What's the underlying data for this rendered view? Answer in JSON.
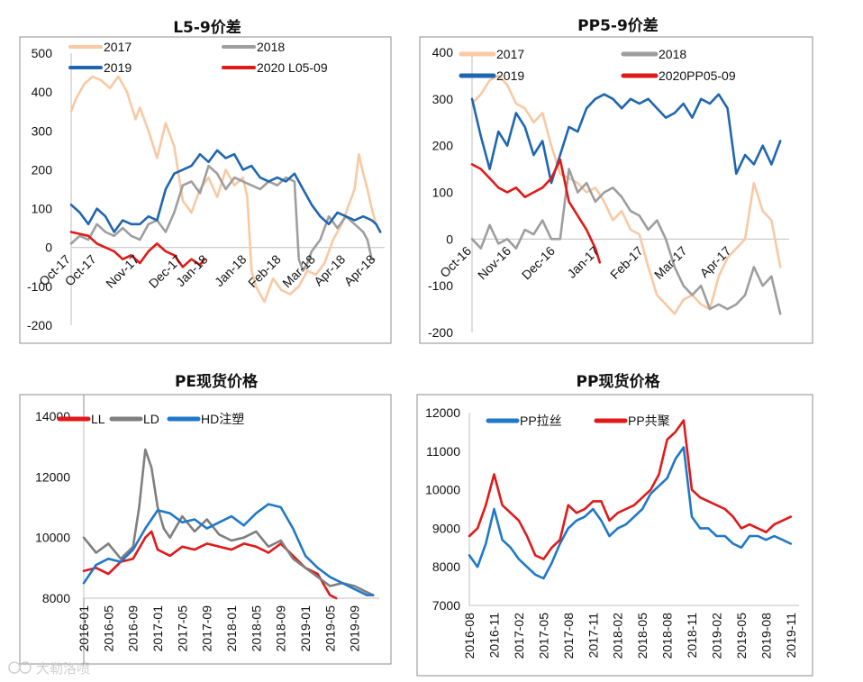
{
  "watermark": "大勒洛喷",
  "chart_data": [
    {
      "type": "line",
      "title": "L5-9价差",
      "ylim": [
        -200,
        500
      ],
      "yticks": [
        -200,
        -100,
        0,
        100,
        200,
        300,
        400,
        500
      ],
      "x_range": [
        0,
        7.3
      ],
      "categories": [
        "Oct-17",
        "Oct-17",
        "Nov-17",
        "Dec-17",
        "Jan-18",
        "Jan-18",
        "Feb-18",
        "Mar-18",
        "Apr-18",
        "Apr-18"
      ],
      "cat_pos": [
        0,
        0.6,
        1.6,
        2.6,
        3.2,
        4.1,
        4.9,
        5.7,
        6.4,
        7.1
      ],
      "xtick_rotate": -45,
      "series": [
        {
          "name": "2017",
          "color": "#F8C9A3",
          "x": [
            0,
            0.1,
            0.3,
            0.5,
            0.7,
            0.9,
            1.1,
            1.3,
            1.5,
            1.6,
            1.8,
            2.0,
            2.2,
            2.4,
            2.6,
            2.8,
            3.0,
            3.2,
            3.4,
            3.6,
            3.8,
            4.0,
            4.1,
            4.2,
            4.3,
            4.5,
            4.7,
            4.9,
            5.1,
            5.3,
            5.5,
            5.7,
            5.9,
            6.1,
            6.3,
            6.5,
            6.6,
            6.7,
            6.8,
            6.9,
            7.0,
            7.1
          ],
          "values": [
            350,
            380,
            420,
            440,
            430,
            410,
            440,
            400,
            330,
            360,
            300,
            230,
            320,
            260,
            120,
            90,
            150,
            180,
            130,
            200,
            160,
            180,
            130,
            -60,
            -100,
            -140,
            -80,
            -110,
            -120,
            -100,
            -60,
            -70,
            -40,
            20,
            60,
            120,
            150,
            240,
            190,
            150,
            100,
            60
          ]
        },
        {
          "name": "2018",
          "color": "#9E9E9E",
          "x": [
            0,
            0.2,
            0.4,
            0.6,
            0.8,
            1.0,
            1.2,
            1.4,
            1.6,
            1.8,
            2.0,
            2.2,
            2.4,
            2.6,
            2.8,
            3.0,
            3.2,
            3.4,
            3.6,
            3.8,
            4.0,
            4.2,
            4.4,
            4.6,
            4.8,
            5.0,
            5.2,
            5.3,
            5.4,
            5.5,
            5.6,
            5.8,
            6.0,
            6.2,
            6.4,
            6.6,
            6.8,
            6.9,
            7.0,
            7.05
          ],
          "values": [
            10,
            30,
            20,
            60,
            40,
            30,
            50,
            30,
            20,
            60,
            70,
            40,
            90,
            160,
            170,
            140,
            210,
            190,
            150,
            180,
            170,
            160,
            150,
            170,
            160,
            180,
            170,
            -30,
            -60,
            -40,
            -10,
            20,
            80,
            50,
            80,
            60,
            40,
            20,
            -30,
            -30
          ]
        },
        {
          "name": "2019",
          "color": "#1F66B0",
          "x": [
            0,
            0.2,
            0.4,
            0.6,
            0.8,
            1.0,
            1.2,
            1.4,
            1.6,
            1.8,
            2.0,
            2.2,
            2.4,
            2.6,
            2.8,
            3.0,
            3.2,
            3.4,
            3.6,
            3.8,
            4.0,
            4.2,
            4.4,
            4.6,
            4.8,
            5.0,
            5.2,
            5.4,
            5.6,
            5.8,
            6.0,
            6.2,
            6.4,
            6.6,
            6.8,
            7.0,
            7.1,
            7.2
          ],
          "values": [
            110,
            90,
            60,
            100,
            80,
            40,
            70,
            60,
            60,
            80,
            70,
            150,
            190,
            200,
            210,
            240,
            220,
            250,
            230,
            240,
            200,
            210,
            180,
            170,
            180,
            170,
            190,
            150,
            110,
            80,
            60,
            90,
            80,
            70,
            80,
            70,
            60,
            40
          ]
        },
        {
          "name": "2020 L05-09",
          "color": "#E01919",
          "x": [
            0,
            0.2,
            0.4,
            0.6,
            0.8,
            1.0,
            1.2,
            1.4,
            1.6,
            1.8,
            2.0,
            2.2,
            2.4,
            2.6,
            2.8,
            3.0,
            3.1
          ],
          "values": [
            40,
            35,
            30,
            10,
            0,
            -10,
            -30,
            -20,
            -40,
            -10,
            10,
            -10,
            -20,
            -50,
            -30,
            -45,
            -30
          ]
        }
      ]
    },
    {
      "type": "line",
      "title": "PP5-9价差",
      "ylim": [
        -200,
        400
      ],
      "yticks": [
        -200,
        -100,
        0,
        100,
        200,
        300,
        400
      ],
      "x_range": [
        0,
        7.2
      ],
      "categories": [
        "Oct-16",
        "Nov-16",
        "Dec-16",
        "Jan-17",
        "Feb-17",
        "Mar-17",
        "Apr-17"
      ],
      "cat_pos": [
        0,
        0.9,
        1.9,
        2.9,
        3.9,
        4.9,
        5.9
      ],
      "xtick_rotate": -45,
      "series": [
        {
          "name": "2017",
          "color": "#F8C9A3",
          "x": [
            0,
            0.2,
            0.4,
            0.6,
            0.8,
            1.0,
            1.2,
            1.4,
            1.6,
            1.8,
            2.0,
            2.2,
            2.4,
            2.6,
            2.8,
            3.0,
            3.2,
            3.4,
            3.6,
            3.8,
            4.0,
            4.2,
            4.4,
            4.6,
            4.8,
            5.0,
            5.2,
            5.4,
            5.6,
            5.8,
            6.0,
            6.2,
            6.4,
            6.6,
            6.8,
            7.0
          ],
          "values": [
            290,
            310,
            340,
            350,
            330,
            290,
            280,
            250,
            270,
            200,
            140,
            130,
            120,
            100,
            110,
            80,
            40,
            60,
            20,
            10,
            -60,
            -120,
            -140,
            -160,
            -130,
            -120,
            -140,
            -150,
            -80,
            -40,
            -20,
            0,
            120,
            60,
            40,
            -60
          ]
        },
        {
          "name": "2018",
          "color": "#9E9E9E",
          "x": [
            0,
            0.2,
            0.4,
            0.6,
            0.8,
            1.0,
            1.2,
            1.4,
            1.6,
            1.8,
            2.0,
            2.2,
            2.4,
            2.6,
            2.8,
            3.0,
            3.2,
            3.4,
            3.6,
            3.8,
            4.0,
            4.2,
            4.4,
            4.6,
            4.8,
            5.0,
            5.2,
            5.4,
            5.6,
            5.8,
            6.0,
            6.2,
            6.4,
            6.6,
            6.8,
            7.0
          ],
          "values": [
            0,
            -20,
            30,
            -10,
            0,
            -20,
            20,
            10,
            40,
            0,
            0,
            150,
            100,
            120,
            80,
            100,
            110,
            90,
            60,
            50,
            20,
            40,
            0,
            -60,
            -100,
            -120,
            -100,
            -150,
            -140,
            -150,
            -140,
            -120,
            -60,
            -100,
            -80,
            -160
          ]
        },
        {
          "name": "2019",
          "color": "#1F66B0",
          "x": [
            0,
            0.2,
            0.4,
            0.6,
            0.8,
            1.0,
            1.2,
            1.4,
            1.6,
            1.8,
            2.0,
            2.2,
            2.4,
            2.6,
            2.8,
            3.0,
            3.2,
            3.4,
            3.6,
            3.8,
            4.0,
            4.2,
            4.4,
            4.6,
            4.8,
            5.0,
            5.2,
            5.4,
            5.6,
            5.8,
            6.0,
            6.2,
            6.4,
            6.6,
            6.8,
            7.0
          ],
          "values": [
            300,
            220,
            150,
            230,
            200,
            270,
            240,
            180,
            210,
            120,
            180,
            240,
            230,
            280,
            300,
            310,
            300,
            280,
            300,
            290,
            300,
            280,
            260,
            270,
            290,
            260,
            300,
            290,
            310,
            280,
            140,
            180,
            160,
            200,
            160,
            210
          ]
        },
        {
          "name": "2020PP05-09",
          "color": "#E01919",
          "x": [
            0,
            0.2,
            0.4,
            0.6,
            0.8,
            1.0,
            1.2,
            1.4,
            1.6,
            1.8,
            2.0,
            2.2,
            2.4,
            2.6,
            2.8,
            2.9
          ],
          "values": [
            160,
            150,
            130,
            110,
            100,
            110,
            90,
            100,
            110,
            130,
            170,
            80,
            50,
            20,
            -20,
            -50
          ]
        }
      ]
    },
    {
      "type": "line",
      "title": "PE现货价格",
      "ylim": [
        8000,
        14000
      ],
      "yticks": [
        8000,
        10000,
        12000,
        14000
      ],
      "x_range": [
        0,
        48
      ],
      "categories": [
        "2016-01",
        "2016-05",
        "2016-09",
        "2017-01",
        "2017-05",
        "2017-09",
        "2018-01",
        "2018-05",
        "2018-09",
        "2019-01",
        "2019-05",
        "2019-09"
      ],
      "cat_pos": [
        0,
        4,
        8,
        12,
        16,
        20,
        24,
        28,
        32,
        36,
        40,
        44
      ],
      "xtick_rotate": -90,
      "series": [
        {
          "name": "LL",
          "color": "#E01919",
          "x": [
            0,
            2,
            4,
            6,
            8,
            10,
            11,
            12,
            14,
            16,
            18,
            20,
            22,
            24,
            26,
            28,
            30,
            32,
            34,
            36,
            38,
            40,
            41
          ],
          "values": [
            8900,
            9000,
            8800,
            9200,
            9300,
            10000,
            10200,
            9600,
            9400,
            9700,
            9600,
            9800,
            9700,
            9600,
            9800,
            9700,
            9500,
            9800,
            9400,
            9000,
            8800,
            8100,
            8000
          ]
        },
        {
          "name": "LD",
          "color": "#7F7F7F",
          "x": [
            0,
            2,
            4,
            6,
            8,
            9,
            10,
            11,
            12,
            13,
            14,
            16,
            18,
            20,
            22,
            24,
            26,
            28,
            30,
            32,
            34,
            36,
            38,
            40,
            42,
            44,
            46,
            47
          ],
          "values": [
            10000,
            9500,
            9800,
            9300,
            9700,
            11000,
            12900,
            12300,
            11000,
            10300,
            10000,
            10700,
            10200,
            10600,
            10100,
            9900,
            10000,
            10200,
            9700,
            9900,
            9300,
            9000,
            8700,
            8400,
            8500,
            8400,
            8200,
            8100
          ]
        },
        {
          "name": "HD注塑",
          "color": "#1F78C8",
          "x": [
            0,
            2,
            4,
            6,
            8,
            10,
            12,
            14,
            16,
            18,
            20,
            22,
            24,
            26,
            28,
            30,
            32,
            34,
            36,
            38,
            40,
            42,
            44,
            46,
            47
          ],
          "values": [
            8500,
            9100,
            9300,
            9200,
            9600,
            10300,
            10900,
            10800,
            10500,
            10600,
            10300,
            10500,
            10700,
            10400,
            10800,
            11100,
            11000,
            10300,
            9400,
            9000,
            8700,
            8500,
            8300,
            8100,
            8100
          ]
        }
      ]
    },
    {
      "type": "line",
      "title": "PP现货价格",
      "ylim": [
        7000,
        12000
      ],
      "yticks": [
        7000,
        8000,
        9000,
        10000,
        11000,
        12000
      ],
      "x_range": [
        0,
        40
      ],
      "categories": [
        "2016-08",
        "2016-11",
        "2017-02",
        "2017-05",
        "2017-08",
        "2017-11",
        "2018-02",
        "2018-05",
        "2018-08",
        "2018-11",
        "2019-02",
        "2019-05",
        "2019-08",
        "2019-11"
      ],
      "cat_pos": [
        0,
        3,
        6,
        9,
        12,
        15,
        18,
        21,
        24,
        27,
        30,
        33,
        36,
        39
      ],
      "xtick_rotate": -90,
      "series": [
        {
          "name": "PP拉丝",
          "color": "#1F78C8",
          "x": [
            0,
            1,
            2,
            3,
            4,
            5,
            6,
            7,
            8,
            9,
            10,
            11,
            12,
            13,
            14,
            15,
            16,
            17,
            18,
            19,
            20,
            21,
            22,
            23,
            24,
            25,
            26,
            27,
            28,
            29,
            30,
            31,
            32,
            33,
            34,
            35,
            36,
            37,
            38,
            39
          ],
          "values": [
            8300,
            8000,
            8600,
            9500,
            8700,
            8500,
            8200,
            8000,
            7800,
            7700,
            8100,
            8600,
            9000,
            9200,
            9300,
            9500,
            9200,
            8800,
            9000,
            9100,
            9300,
            9500,
            9900,
            10100,
            10300,
            10800,
            11100,
            9300,
            9000,
            9000,
            8800,
            8800,
            8600,
            8500,
            8800,
            8800,
            8700,
            8800,
            8700,
            8600
          ]
        },
        {
          "name": "PP共聚",
          "color": "#E01919",
          "x": [
            0,
            1,
            2,
            3,
            4,
            5,
            6,
            7,
            8,
            9,
            10,
            11,
            12,
            13,
            14,
            15,
            16,
            17,
            18,
            19,
            20,
            21,
            22,
            23,
            24,
            25,
            26,
            27,
            28,
            29,
            30,
            31,
            32,
            33,
            34,
            35,
            36,
            37,
            38,
            39
          ],
          "values": [
            8800,
            9000,
            9600,
            10400,
            9600,
            9400,
            9200,
            8800,
            8300,
            8200,
            8500,
            8700,
            9600,
            9400,
            9500,
            9700,
            9700,
            9200,
            9400,
            9500,
            9600,
            9800,
            10000,
            10400,
            11300,
            11500,
            11800,
            10000,
            9800,
            9700,
            9600,
            9500,
            9300,
            9000,
            9100,
            9000,
            8900,
            9100,
            9200,
            9300
          ]
        }
      ]
    }
  ]
}
